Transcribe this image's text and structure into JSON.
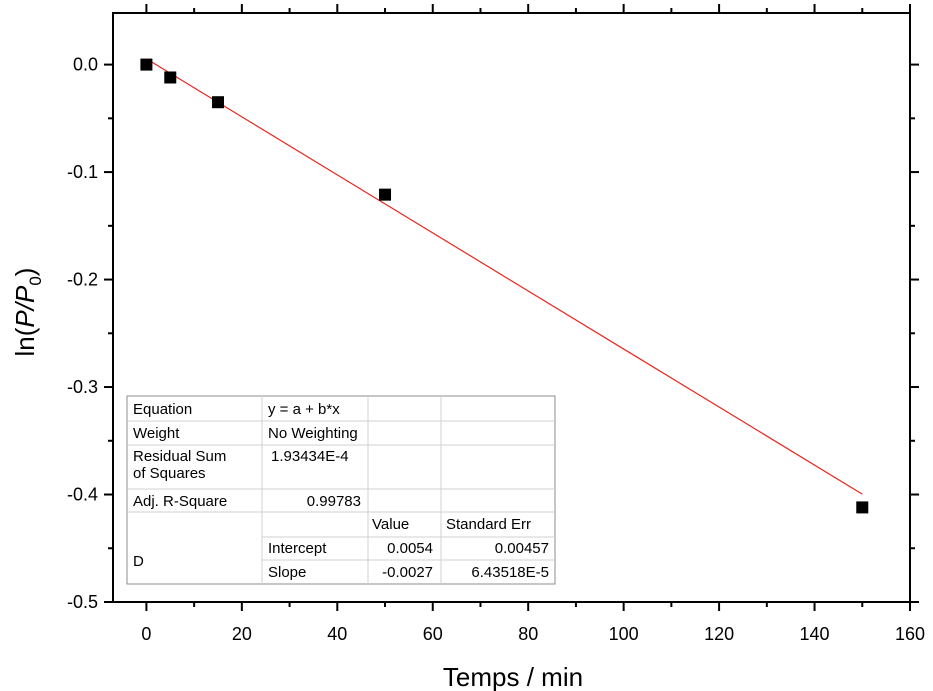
{
  "chart_data": {
    "type": "scatter",
    "title": "",
    "xlabel": "Temps / min",
    "ylabel": {
      "prefix": "ln(",
      "var1": "P",
      "slash": "/",
      "var2": "P",
      "subscript": "0",
      "suffix": ")"
    },
    "xlim": [
      -7,
      160
    ],
    "ylim": [
      -0.5,
      0.048
    ],
    "xticks": [
      0,
      20,
      40,
      60,
      80,
      100,
      120,
      140,
      160
    ],
    "xtick_labels": [
      "0",
      "20",
      "40",
      "60",
      "80",
      "100",
      "120",
      "140",
      "160"
    ],
    "yticks": [
      0.0,
      -0.1,
      -0.2,
      -0.3,
      -0.4,
      -0.5
    ],
    "ytick_labels": [
      "0.0",
      "-0.1",
      "-0.2",
      "-0.3",
      "-0.4",
      "-0.5"
    ],
    "grid": false,
    "series": [
      {
        "marker": "square",
        "color": "#000000",
        "points": [
          {
            "x": 0,
            "y": 0.0
          },
          {
            "x": 5,
            "y": -0.012
          },
          {
            "x": 15,
            "y": -0.035
          },
          {
            "x": 50,
            "y": -0.121
          },
          {
            "x": 150,
            "y": -0.412
          }
        ]
      }
    ],
    "fit": {
      "color": "#e8251c",
      "intercept": 0.0054,
      "slope": -0.0027,
      "x_range": [
        0,
        150
      ]
    },
    "stats_table": {
      "rows": [
        [
          "Equation",
          "y = a + b*x",
          "",
          ""
        ],
        [
          "Weight",
          "No Weighting",
          "",
          ""
        ],
        [
          "Residual Sum of Squares",
          "1.93434E-4",
          "",
          ""
        ],
        [
          "Adj. R-Square",
          "0.99783",
          "",
          ""
        ],
        [
          "",
          "",
          "Value",
          "Standard Err"
        ],
        [
          "D",
          "Intercept",
          "0.0054",
          "0.00457"
        ],
        [
          "",
          "Slope",
          "-0.0027",
          "6.43518E-5"
        ]
      ]
    }
  }
}
